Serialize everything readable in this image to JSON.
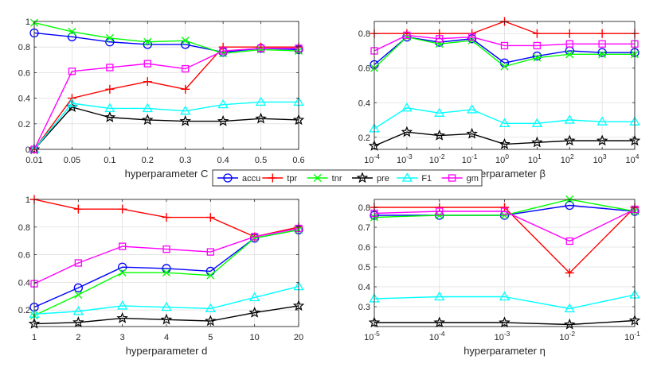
{
  "series_styles": {
    "accu": {
      "color": "#0000ff",
      "marker": "circle"
    },
    "tpr": {
      "color": "#ff0000",
      "marker": "plus"
    },
    "tnr": {
      "color": "#00ff00",
      "marker": "x"
    },
    "pre": {
      "color": "#000000",
      "marker": "star"
    },
    "F1": {
      "color": "#00ffff",
      "marker": "triangle"
    },
    "gm": {
      "color": "#ff00ff",
      "marker": "square"
    }
  },
  "legend": [
    "accu",
    "tpr",
    "tnr",
    "pre",
    "F1",
    "gm"
  ],
  "chart_data": [
    {
      "type": "line",
      "xlabel": "hyperparameter C",
      "categories": [
        "0.01",
        "0.05",
        "0.1",
        "0.2",
        "0.3",
        "0.4",
        "0.5",
        "0.6"
      ],
      "ylim": [
        0,
        1
      ],
      "yticks": [
        0,
        0.2,
        0.4,
        0.6,
        0.8,
        1
      ],
      "ytick_labels": [
        "0",
        "0.2",
        "0.4",
        "0.6",
        "0.8",
        "1"
      ],
      "series": [
        {
          "name": "accu",
          "values": [
            0.91,
            0.88,
            0.84,
            0.82,
            0.82,
            0.76,
            0.79,
            0.78
          ]
        },
        {
          "name": "tpr",
          "values": [
            0.0,
            0.4,
            0.47,
            0.53,
            0.47,
            0.8,
            0.8,
            0.8
          ]
        },
        {
          "name": "tnr",
          "values": [
            0.99,
            0.92,
            0.87,
            0.84,
            0.85,
            0.75,
            0.78,
            0.77
          ]
        },
        {
          "name": "pre",
          "values": [
            0.0,
            0.33,
            0.25,
            0.23,
            0.22,
            0.22,
            0.24,
            0.23
          ]
        },
        {
          "name": "F1",
          "values": [
            0.0,
            0.36,
            0.32,
            0.32,
            0.3,
            0.35,
            0.37,
            0.37
          ]
        },
        {
          "name": "gm",
          "values": [
            0.0,
            0.61,
            0.64,
            0.67,
            0.63,
            0.77,
            0.79,
            0.79
          ]
        }
      ]
    },
    {
      "type": "line",
      "xlabel": "hyperparameter β",
      "categories": [
        "10^-4",
        "10^-3",
        "10^-2",
        "10^-1",
        "10^0",
        "10^1",
        "10^2",
        "10^3",
        "10^4"
      ],
      "category_ticks": [
        {
          "base": "10",
          "exp": "-4"
        },
        {
          "base": "10",
          "exp": "-3"
        },
        {
          "base": "10",
          "exp": "-2"
        },
        {
          "base": "10",
          "exp": "-1"
        },
        {
          "base": "10",
          "exp": "0"
        },
        {
          "base": "10",
          "exp": "1"
        },
        {
          "base": "10",
          "exp": "2"
        },
        {
          "base": "10",
          "exp": "3"
        },
        {
          "base": "10",
          "exp": "4"
        }
      ],
      "ylim": [
        0.13,
        0.87
      ],
      "yticks": [
        0.2,
        0.4,
        0.6,
        0.8
      ],
      "ytick_labels": [
        "0.2",
        "0.4",
        "0.6",
        "0.8"
      ],
      "series": [
        {
          "name": "accu",
          "values": [
            0.62,
            0.78,
            0.75,
            0.77,
            0.63,
            0.67,
            0.7,
            0.69,
            0.69
          ]
        },
        {
          "name": "tpr",
          "values": [
            0.8,
            0.8,
            0.8,
            0.8,
            0.87,
            0.8,
            0.8,
            0.8,
            0.8
          ]
        },
        {
          "name": "tnr",
          "values": [
            0.6,
            0.78,
            0.74,
            0.76,
            0.61,
            0.66,
            0.68,
            0.68,
            0.68
          ]
        },
        {
          "name": "pre",
          "values": [
            0.15,
            0.23,
            0.21,
            0.22,
            0.16,
            0.17,
            0.18,
            0.18,
            0.18
          ]
        },
        {
          "name": "F1",
          "values": [
            0.25,
            0.37,
            0.34,
            0.36,
            0.28,
            0.28,
            0.3,
            0.29,
            0.29
          ]
        },
        {
          "name": "gm",
          "values": [
            0.7,
            0.79,
            0.77,
            0.78,
            0.73,
            0.73,
            0.74,
            0.74,
            0.74
          ]
        }
      ]
    },
    {
      "type": "line",
      "xlabel": "hyperparameter d",
      "categories": [
        "1",
        "2",
        "3",
        "4",
        "5",
        "10",
        "20"
      ],
      "ylim": [
        0.08,
        1
      ],
      "yticks": [
        0.2,
        0.4,
        0.6,
        0.8,
        1
      ],
      "ytick_labels": [
        "0.2",
        "0.4",
        "0.6",
        "0.8",
        "1"
      ],
      "series": [
        {
          "name": "accu",
          "values": [
            0.22,
            0.36,
            0.51,
            0.5,
            0.48,
            0.72,
            0.78
          ]
        },
        {
          "name": "tpr",
          "values": [
            1.0,
            0.93,
            0.93,
            0.87,
            0.87,
            0.73,
            0.8
          ]
        },
        {
          "name": "tnr",
          "values": [
            0.16,
            0.31,
            0.47,
            0.47,
            0.45,
            0.72,
            0.78
          ]
        },
        {
          "name": "pre",
          "values": [
            0.1,
            0.11,
            0.14,
            0.13,
            0.12,
            0.18,
            0.23
          ]
        },
        {
          "name": "F1",
          "values": [
            0.17,
            0.19,
            0.23,
            0.22,
            0.21,
            0.29,
            0.37
          ]
        },
        {
          "name": "gm",
          "values": [
            0.39,
            0.54,
            0.66,
            0.64,
            0.62,
            0.73,
            0.79
          ]
        }
      ]
    },
    {
      "type": "line",
      "xlabel": "hyperparameter η",
      "categories": [
        "10^-5",
        "10^-4",
        "10^-3",
        "10^-2",
        "10^-1"
      ],
      "category_ticks": [
        {
          "base": "10",
          "exp": "-5"
        },
        {
          "base": "10",
          "exp": "-4"
        },
        {
          "base": "10",
          "exp": "-3"
        },
        {
          "base": "10",
          "exp": "-2"
        },
        {
          "base": "10",
          "exp": "-1"
        }
      ],
      "ylim": [
        0.2,
        0.84
      ],
      "yticks": [
        0.3,
        0.4,
        0.5,
        0.6,
        0.7,
        0.8
      ],
      "ytick_labels": [
        "0.3",
        "0.4",
        "0.5",
        "0.6",
        "0.7",
        "0.8"
      ],
      "series": [
        {
          "name": "accu",
          "values": [
            0.76,
            0.76,
            0.76,
            0.81,
            0.78
          ]
        },
        {
          "name": "tpr",
          "values": [
            0.8,
            0.8,
            0.8,
            0.47,
            0.8
          ]
        },
        {
          "name": "tnr",
          "values": [
            0.75,
            0.76,
            0.76,
            0.84,
            0.78
          ]
        },
        {
          "name": "pre",
          "values": [
            0.22,
            0.22,
            0.22,
            0.21,
            0.23
          ]
        },
        {
          "name": "F1",
          "values": [
            0.34,
            0.35,
            0.35,
            0.29,
            0.36
          ]
        },
        {
          "name": "gm",
          "values": [
            0.77,
            0.78,
            0.78,
            0.63,
            0.79
          ]
        }
      ]
    }
  ]
}
